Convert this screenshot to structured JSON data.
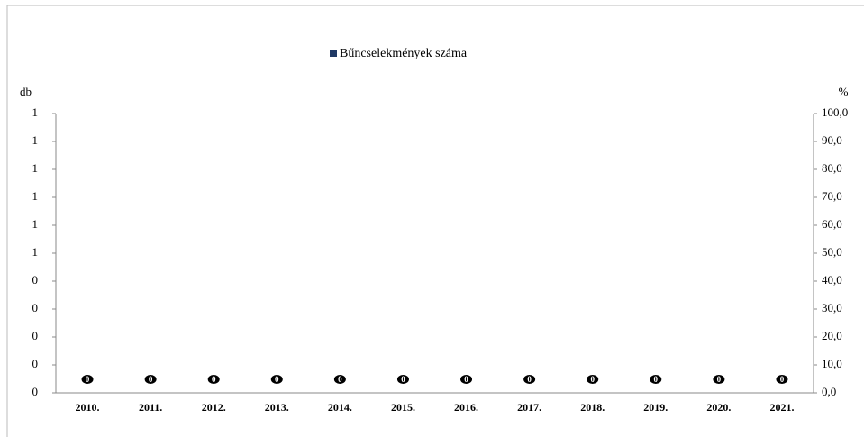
{
  "chart_data": {
    "type": "bar",
    "y_label": "db",
    "y2_label": "%",
    "categories": [
      "2010.",
      "2011.",
      "2012.",
      "2013.",
      "2014.",
      "2015.",
      "2016.",
      "2017.",
      "2018.",
      "2019.",
      "2020.",
      "2021."
    ],
    "series": [
      {
        "name": "Bűncselekmények száma",
        "color": "#1f3864",
        "values": [
          0,
          0,
          0,
          0,
          0,
          0,
          0,
          0,
          0,
          0,
          0,
          0
        ]
      }
    ],
    "ylim": [
      0,
      1
    ],
    "yticks": [
      0,
      {
        "value": 0.1,
        "label": "0"
      },
      {
        "value": 0.2,
        "label": "0"
      },
      {
        "value": 0.3,
        "label": "0"
      },
      {
        "value": 0.4,
        "label": "0"
      },
      {
        "value": 0.5,
        "label": "1"
      },
      {
        "value": 0.6,
        "label": "1"
      },
      {
        "value": 0.7,
        "label": "1"
      },
      {
        "value": 0.8,
        "label": "1"
      },
      {
        "value": 0.9,
        "label": "1"
      },
      1
    ],
    "y2lim": [
      0,
      100
    ],
    "y2ticks": [
      {
        "value": 0,
        "label": "0,0"
      },
      {
        "value": 10,
        "label": "10,0"
      },
      {
        "value": 20,
        "label": "20,0"
      },
      {
        "value": 30,
        "label": "30,0"
      },
      {
        "value": 40,
        "label": "40,0"
      },
      {
        "value": 50,
        "label": "50,0"
      },
      {
        "value": 60,
        "label": "60,0"
      },
      {
        "value": 70,
        "label": "70,0"
      },
      {
        "value": 80,
        "label": "80,0"
      },
      {
        "value": 90,
        "label": "90,0"
      },
      {
        "value": 100,
        "label": "100,0"
      }
    ],
    "legend": "top",
    "grid": false
  }
}
